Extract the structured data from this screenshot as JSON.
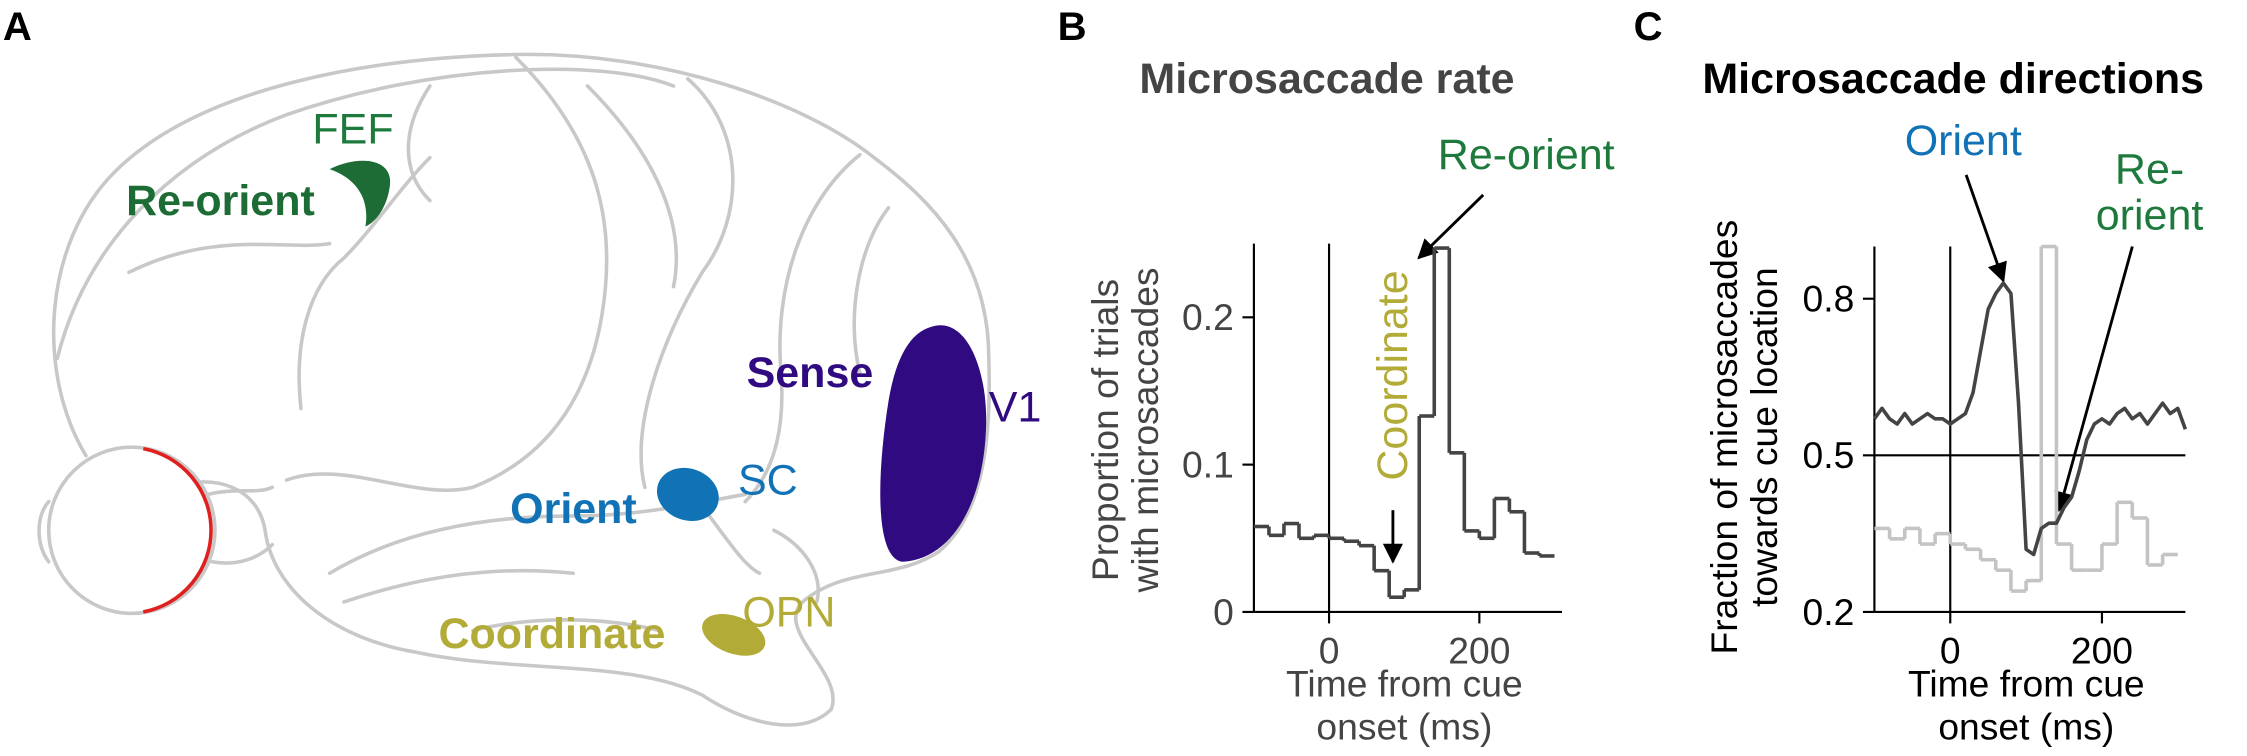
{
  "panels": [
    "A",
    "B",
    "C"
  ],
  "brain": {
    "labels": [
      {
        "text": "FEF",
        "color": "#1d7a3c"
      },
      {
        "text": "Re-orient",
        "color": "#1d6b35"
      },
      {
        "text": "Sense",
        "color": "#2f0a80"
      },
      {
        "text": "V1",
        "color": "#2f0a80"
      },
      {
        "text": "Orient",
        "color": "#1272b6"
      },
      {
        "text": "SC",
        "color": "#1272b6"
      },
      {
        "text": "Coordinate",
        "color": "#b3ab38"
      },
      {
        "text": "OPN",
        "color": "#b3ab38"
      }
    ]
  },
  "chart_data": [
    {
      "type": "histogram",
      "title": "Microsaccade rate",
      "ylabel": [
        "Proportion of trials",
        "with microsaccades"
      ],
      "xlabel": [
        "Time from cue",
        "onset (ms)"
      ],
      "bins": [
        -100,
        -80,
        -60,
        -40,
        -20,
        0,
        20,
        40,
        60,
        80,
        100,
        120,
        140,
        160,
        180,
        200,
        220,
        240,
        260,
        280,
        300
      ],
      "values": [
        0.058,
        0.052,
        0.06,
        0.05,
        0.052,
        0.05,
        0.048,
        0.045,
        0.028,
        0.01,
        0.015,
        0.133,
        0.247,
        0.108,
        0.055,
        0.05,
        0.077,
        0.068,
        0.04,
        0.038
      ],
      "color": "#444444",
      "xlim": [
        -100,
        310
      ],
      "ylim": [
        0,
        0.25
      ],
      "xticks": [
        0,
        200
      ],
      "yticks": [
        0,
        0.1,
        0.2
      ],
      "vline": 0,
      "annotations": [
        {
          "lines": [
            "Re-orient"
          ],
          "color": "#1d7a3c"
        },
        {
          "lines": [
            "Coordinate"
          ],
          "color": "#b3ab38"
        }
      ]
    },
    {
      "type": "line",
      "title": "Microsaccade directions",
      "ylabel": [
        "Fraction of microsaccades",
        "towards cue location"
      ],
      "xlabel": [
        "Time from cue",
        "onset (ms)"
      ],
      "series": [
        {
          "color": "#c4c4c4",
          "drawstyle": "steps",
          "bins": [
            -100,
            -80,
            -60,
            -40,
            -20,
            0,
            20,
            40,
            60,
            80,
            100,
            120,
            140,
            160,
            180,
            200,
            220,
            240,
            260,
            280,
            300
          ],
          "values": [
            0.36,
            0.34,
            0.36,
            0.33,
            0.35,
            0.33,
            0.32,
            0.3,
            0.28,
            0.24,
            0.26,
            0.9,
            0.33,
            0.28,
            0.28,
            0.33,
            0.41,
            0.38,
            0.29,
            0.31
          ]
        },
        {
          "color": "#444444",
          "drawstyle": "line",
          "x": [
            -100,
            -90,
            -80,
            -70,
            -60,
            -50,
            -40,
            -30,
            -20,
            -10,
            0,
            10,
            20,
            30,
            40,
            50,
            60,
            70,
            80,
            90,
            100,
            110,
            120,
            130,
            140,
            150,
            160,
            170,
            180,
            190,
            200,
            210,
            220,
            230,
            240,
            250,
            260,
            270,
            280,
            290,
            300,
            310
          ],
          "values": [
            0.57,
            0.59,
            0.57,
            0.56,
            0.58,
            0.56,
            0.57,
            0.58,
            0.57,
            0.57,
            0.56,
            0.57,
            0.58,
            0.62,
            0.7,
            0.78,
            0.81,
            0.83,
            0.81,
            0.6,
            0.32,
            0.31,
            0.36,
            0.37,
            0.37,
            0.4,
            0.42,
            0.47,
            0.53,
            0.56,
            0.57,
            0.56,
            0.58,
            0.59,
            0.57,
            0.58,
            0.56,
            0.58,
            0.6,
            0.58,
            0.59,
            0.55
          ]
        }
      ],
      "xlim": [
        -100,
        310
      ],
      "ylim": [
        0.2,
        0.9
      ],
      "xticks": [
        0,
        200
      ],
      "yticks": [
        0.2,
        0.5,
        0.8
      ],
      "vline": 0,
      "hline": 0.5,
      "annotations": [
        {
          "lines": [
            "Orient"
          ],
          "color": "#1272b6"
        },
        {
          "lines": [
            "Re-",
            "orient"
          ],
          "color": "#1d7a3c"
        }
      ]
    }
  ]
}
